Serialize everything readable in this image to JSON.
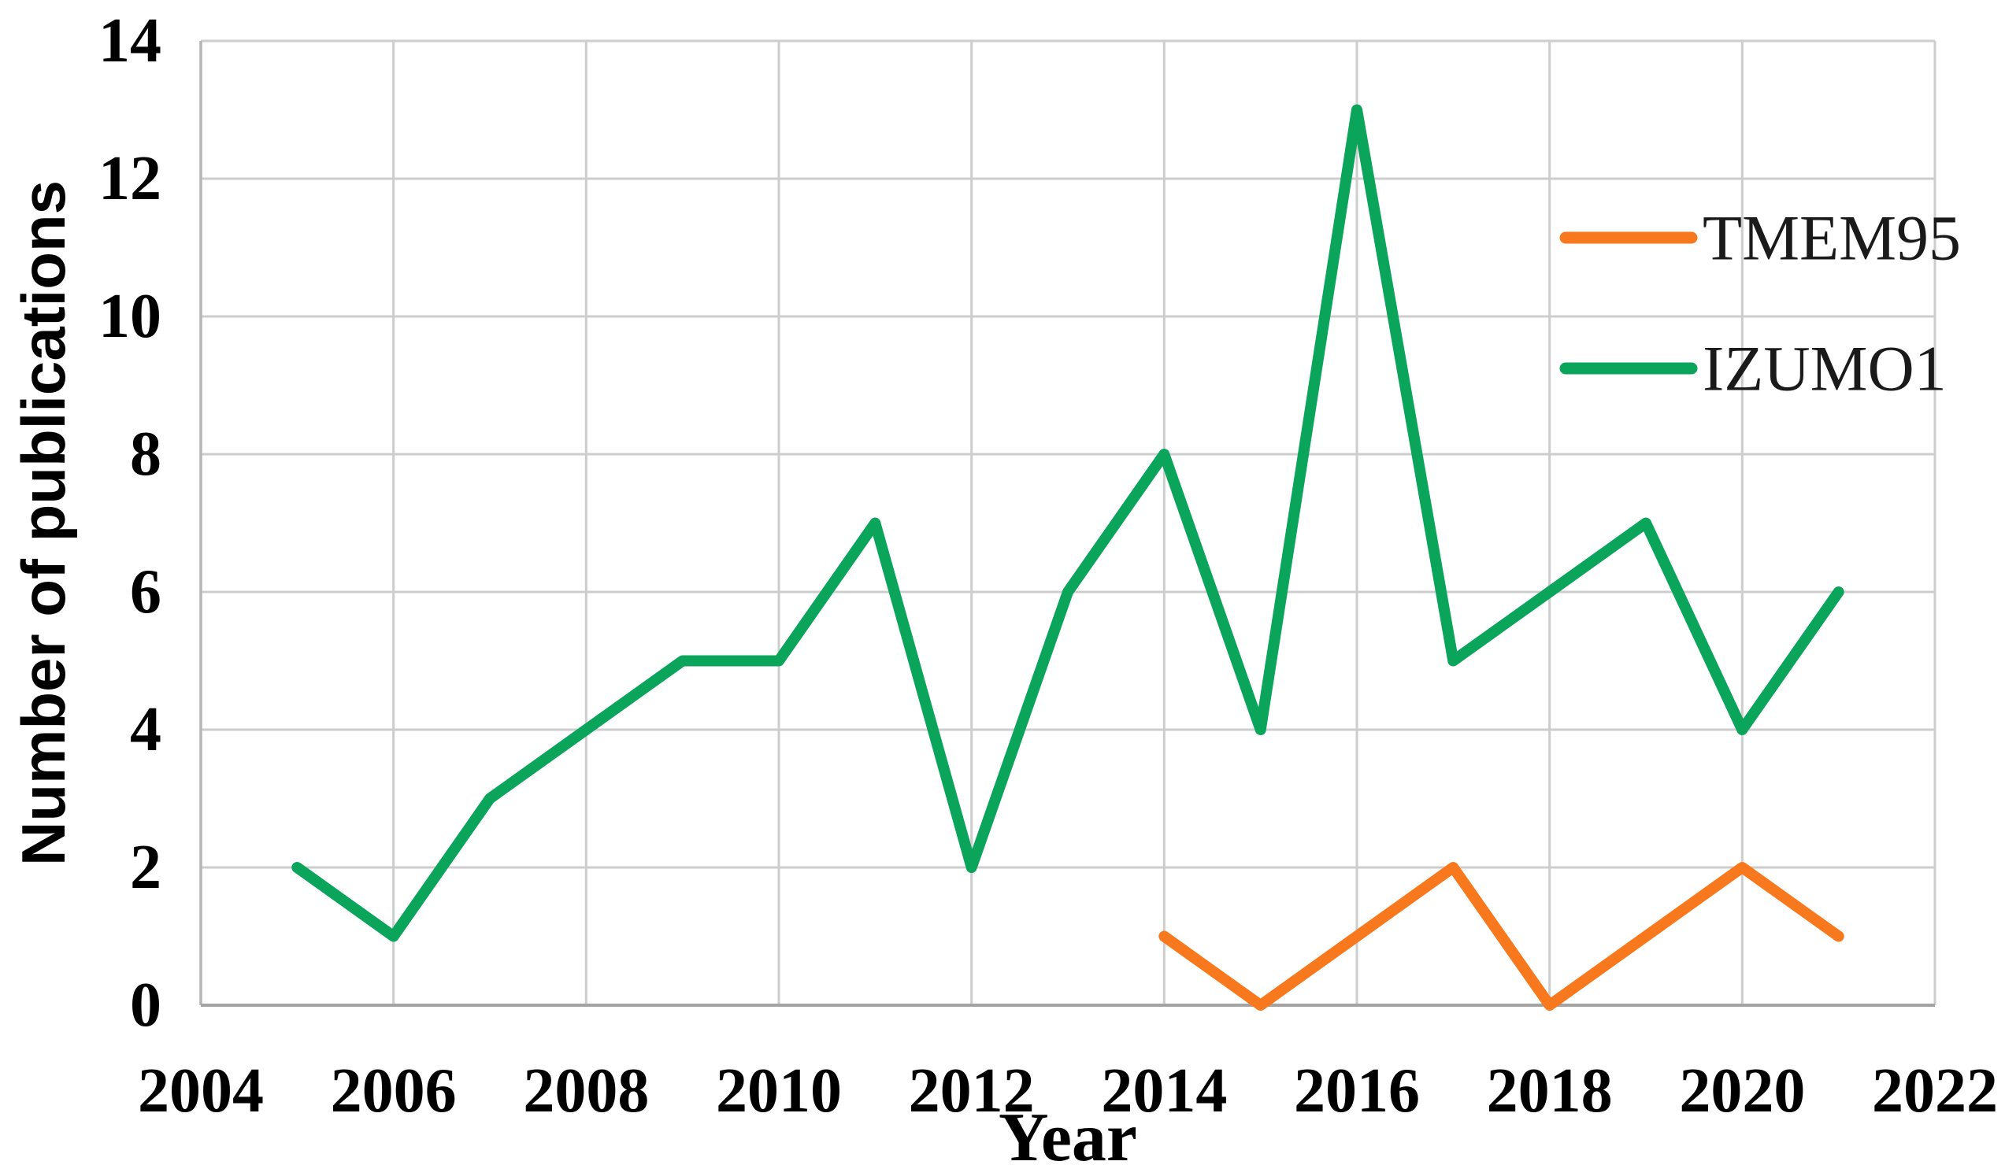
{
  "chart_data": {
    "type": "line",
    "title": "",
    "xlabel": "Year",
    "ylabel": "Number of publications",
    "xlim": [
      2004,
      2022
    ],
    "ylim": [
      0,
      14
    ],
    "grid": true,
    "legend_position": "top-right-inside",
    "x_ticks": [
      "2004",
      "2006",
      "2008",
      "2010",
      "2012",
      "2014",
      "2016",
      "2018",
      "2020",
      "2022"
    ],
    "x_tick_values": [
      2004,
      2006,
      2008,
      2010,
      2012,
      2014,
      2016,
      2018,
      2020,
      2022
    ],
    "y_ticks": [
      "0",
      "2",
      "4",
      "6",
      "8",
      "10",
      "12",
      "14"
    ],
    "y_tick_values": [
      0,
      2,
      4,
      6,
      8,
      10,
      12,
      14
    ],
    "series": [
      {
        "name": "TMEM95",
        "color": "#F8791D",
        "x": [
          2014,
          2015,
          2016,
          2017,
          2018,
          2019,
          2020,
          2021
        ],
        "values": [
          1,
          0,
          1,
          2,
          0,
          1,
          2,
          1
        ]
      },
      {
        "name": "IZUMO1",
        "color": "#0AA45A",
        "x": [
          2005,
          2006,
          2007,
          2008,
          2009,
          2010,
          2011,
          2012,
          2013,
          2014,
          2015,
          2016,
          2017,
          2018,
          2019,
          2020,
          2021
        ],
        "values": [
          2,
          1,
          3,
          4,
          5,
          5,
          7,
          2,
          6,
          8,
          4,
          13,
          5,
          6,
          7,
          4,
          6
        ]
      }
    ]
  }
}
